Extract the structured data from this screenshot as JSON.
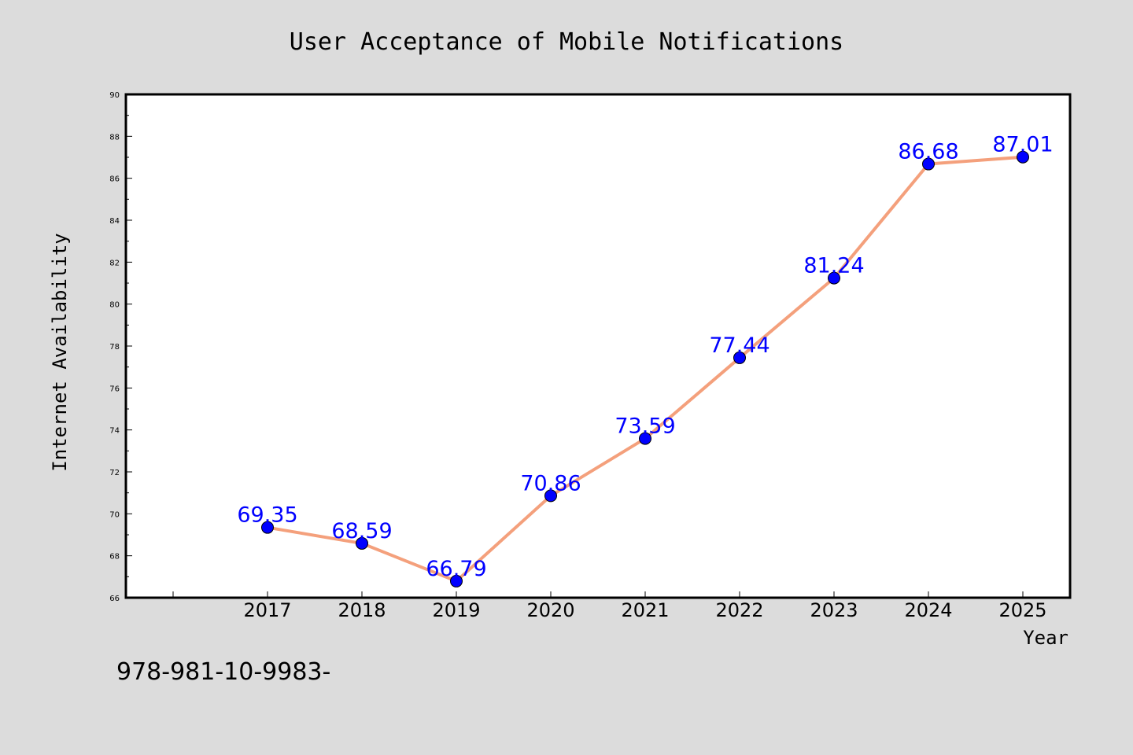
{
  "chart_data": {
    "type": "line",
    "title": "User Acceptance of Mobile Notifications",
    "xlabel": "Year",
    "ylabel": "Internet Availability",
    "categories": [
      "2017",
      "2018",
      "2019",
      "2020",
      "2021",
      "2022",
      "2023",
      "2024",
      "2025"
    ],
    "series": [
      {
        "values": [
          69.35,
          68.59,
          66.79,
          70.86,
          73.59,
          77.44,
          81.24,
          86.68,
          87.01
        ],
        "labels": [
          "69.35",
          "68.59",
          "66.79",
          "70.86",
          "73.59",
          "77.44",
          "81.24",
          "86.68",
          "87.01"
        ],
        "line_color": "#f4a07c",
        "marker_color": "#0000ff"
      }
    ],
    "ylim": [
      66,
      90
    ],
    "yticks": [
      "66",
      "68",
      "70",
      "72",
      "74",
      "76",
      "78",
      "80",
      "82",
      "84",
      "86",
      "88",
      "90"
    ],
    "grid": false,
    "legend": "none"
  },
  "footer": {
    "text": "978-981-10-9983-"
  }
}
